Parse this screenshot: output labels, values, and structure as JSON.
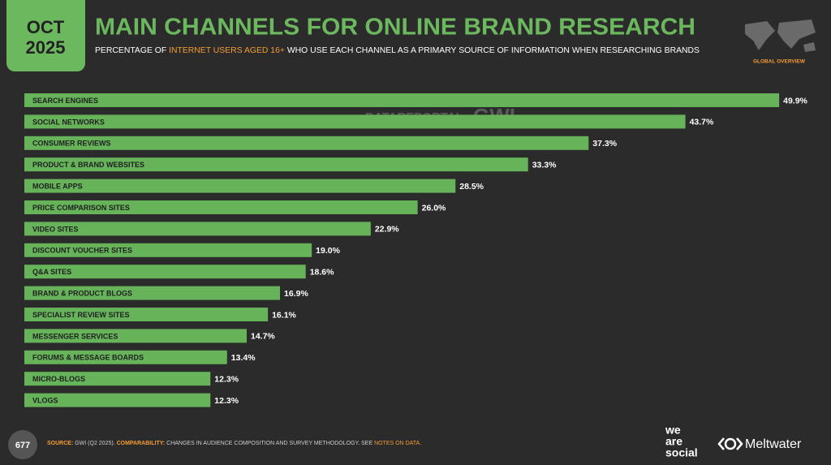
{
  "header": {
    "month": "OCT",
    "year": "2025",
    "title": "MAIN CHANNELS FOR ONLINE BRAND RESEARCH",
    "subtitle": [
      "PERCENTAGE OF ",
      "INTERNET USERS AGED 16+",
      " WHO USE EACH CHANNEL AS A PRIMARY SOURCE OF INFORMATION WHEN RESEARCHING BRANDS"
    ],
    "region": "GLOBAL OVERVIEW"
  },
  "chart_data": {
    "type": "bar",
    "orientation": "horizontal",
    "color": "#66b35a",
    "categories": [
      "SEARCH ENGINES",
      "SOCIAL NETWORKS",
      "CONSUMER REVIEWS",
      "PRODUCT & BRAND WEBSITES",
      "MOBILE APPS",
      "PRICE COMPARISON SITES",
      "VIDEO SITES",
      "DISCOUNT VOUCHER SITES",
      "Q&A SITES",
      "BRAND & PRODUCT BLOGS",
      "SPECIALIST REVIEW SITES",
      "MESSENGER SERVICES",
      "FORUMS & MESSAGE BOARDS",
      "MICRO-BLOGS",
      "VLOGS"
    ],
    "values": [
      49.9,
      43.7,
      37.3,
      33.3,
      28.5,
      26.0,
      22.9,
      19.0,
      18.6,
      16.9,
      16.1,
      14.7,
      13.4,
      12.3,
      12.3
    ],
    "value_labels": [
      "49.9%",
      "43.7%",
      "37.3%",
      "33.3%",
      "28.5%",
      "26.0%",
      "22.9%",
      "19.0%",
      "18.6%",
      "16.9%",
      "16.1%",
      "14.7%",
      "13.4%",
      "12.3%",
      "12.3%"
    ]
  },
  "watermark": [
    "DATAREPORTAL",
    "GWI."
  ],
  "footer": {
    "page": "677",
    "source_label": "SOURCE:",
    "source_text": " GWI (Q2 2025). ",
    "comparability_label": "COMPARABILITY:",
    "comparability_text": " CHANGES IN AUDIENCE COMPOSITION AND SURVEY METHODOLOGY. SEE ",
    "notes_link": "NOTES ON DATA",
    "end": ".",
    "logo_lines": [
      "we",
      "are",
      "social"
    ],
    "partner": "Meltwater"
  }
}
